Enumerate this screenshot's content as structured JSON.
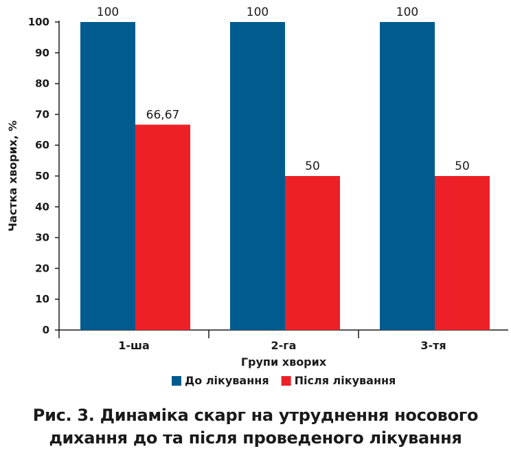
{
  "chart_data": {
    "type": "bar",
    "categories": [
      "1-ша",
      "2-га",
      "3-тя"
    ],
    "series": [
      {
        "name": "До лікування",
        "values": [
          100,
          100,
          100
        ],
        "labels": [
          "100",
          "100",
          "100"
        ],
        "color": "#005b8f"
      },
      {
        "name": "Після лікування",
        "values": [
          66.67,
          50,
          50
        ],
        "labels": [
          "66,67",
          "50",
          "50"
        ],
        "color": "#ed2028"
      }
    ],
    "xlabel": "Групи хворих",
    "ylabel": "Частка хворих, %",
    "ylim": [
      0,
      100
    ],
    "yticks": [
      "0",
      "10",
      "20",
      "30",
      "40",
      "50",
      "60",
      "70",
      "80",
      "90",
      "100"
    ],
    "grid": false,
    "legend": "bottom"
  },
  "caption": {
    "line1": "Рис. 3. Динаміка скарг на утруднення носового",
    "line2": "дихання до та після проведеного лікування"
  }
}
